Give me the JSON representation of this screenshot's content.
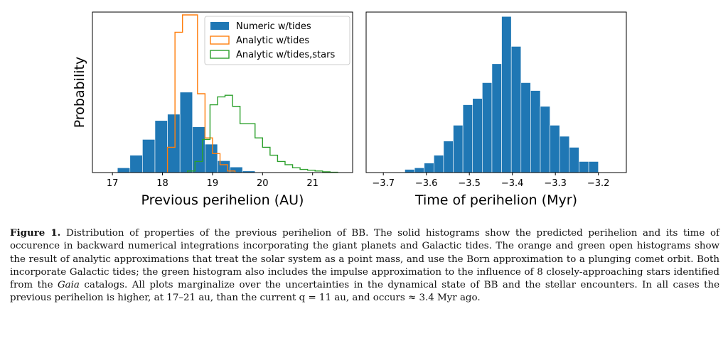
{
  "chart_data": [
    {
      "type": "histogram",
      "title": "",
      "xlabel": "Previous perihelion (AU)",
      "ylabel": "Probability",
      "xlim": [
        16.6,
        21.8
      ],
      "xticks": [
        "17",
        "18",
        "19",
        "20",
        "21"
      ],
      "xtick_values": [
        17,
        18,
        19,
        20,
        21
      ],
      "ymax": 1.0,
      "legend_position": "top-right",
      "series": [
        {
          "name": "Numeric w/tides",
          "style": "filled",
          "color": "#1f77b4",
          "bin_edges": [
            17.1,
            17.35,
            17.6,
            17.85,
            18.1,
            18.35,
            18.6,
            18.85,
            19.1,
            19.35,
            19.6,
            19.85
          ],
          "values": [
            0.03,
            0.11,
            0.21,
            0.33,
            0.37,
            0.51,
            0.29,
            0.18,
            0.075,
            0.035,
            0.01
          ]
        },
        {
          "name": "Analytic w/tides",
          "style": "step",
          "color": "#ff7f0e",
          "bin_edges": [
            18.1,
            18.25,
            18.4,
            18.55,
            18.7,
            18.85,
            19.0,
            19.15,
            19.3,
            19.45
          ],
          "values": [
            0.16,
            0.89,
            1.0,
            1.0,
            0.5,
            0.22,
            0.12,
            0.05,
            0.01
          ]
        },
        {
          "name": "Analytic w/tides,stars",
          "style": "step",
          "color": "#2ca02c",
          "bin_edges": [
            18.5,
            18.65,
            18.8,
            18.95,
            19.1,
            19.25,
            19.4,
            19.55,
            19.7,
            19.85,
            20.0,
            20.15,
            20.3,
            20.45,
            20.6,
            20.75,
            20.9,
            21.05,
            21.2,
            21.35,
            21.5
          ],
          "values": [
            0.01,
            0.07,
            0.21,
            0.43,
            0.48,
            0.49,
            0.42,
            0.31,
            0.31,
            0.22,
            0.16,
            0.11,
            0.07,
            0.05,
            0.03,
            0.02,
            0.015,
            0.01,
            0.005,
            0.002
          ]
        }
      ]
    },
    {
      "type": "histogram",
      "title": "",
      "xlabel": "Time of perihelion (Myr)",
      "ylabel": "",
      "xlim": [
        -3.74,
        -3.135
      ],
      "xticks": [
        "−3.7",
        "−3.6",
        "−3.5",
        "−3.4",
        "−3.3",
        "−3.2"
      ],
      "xtick_values": [
        -3.7,
        -3.6,
        -3.5,
        -3.4,
        -3.3,
        -3.2
      ],
      "ymax": 1.0,
      "series": [
        {
          "name": "Time of perihelion",
          "style": "filled",
          "color": "#1f77b4",
          "bin_edges": [
            -3.65,
            -3.6275,
            -3.605,
            -3.5825,
            -3.56,
            -3.5375,
            -3.515,
            -3.4925,
            -3.47,
            -3.4475,
            -3.425,
            -3.4025,
            -3.38,
            -3.3575,
            -3.335,
            -3.3125,
            -3.29,
            -3.2675,
            -3.245,
            -3.2225,
            -3.2
          ],
          "values": [
            0.02,
            0.03,
            0.06,
            0.11,
            0.2,
            0.3,
            0.43,
            0.47,
            0.57,
            0.69,
            0.99,
            0.8,
            0.57,
            0.52,
            0.42,
            0.3,
            0.23,
            0.16,
            0.07,
            0.07
          ]
        }
      ]
    }
  ],
  "caption": {
    "label": "Figure 1.",
    "text_part1": " Distribution of properties of the previous perihelion of BB. The solid histograms show the predicted perihelion and its time of occurence in backward numerical integrations incorporating the giant planets and Galactic tides. The orange and green open histograms show the result of analytic approximations that treat the solar system as a point mass, and use the Born approximation to a plunging comet orbit. Both incorporate Galactic tides; the green histogram also includes the impulse approximation to the influence of 8 closely-approaching stars identified from the ",
    "italic_word": "Gaia",
    "text_part2": " catalogs. All plots marginalize over the uncertainties in the dynamical state of BB and the stellar encounters. In all cases the previous perihelion is higher, at 17–21 au, than the current q = 11 au, and occurs ≈ 3.4 Myr ago."
  }
}
